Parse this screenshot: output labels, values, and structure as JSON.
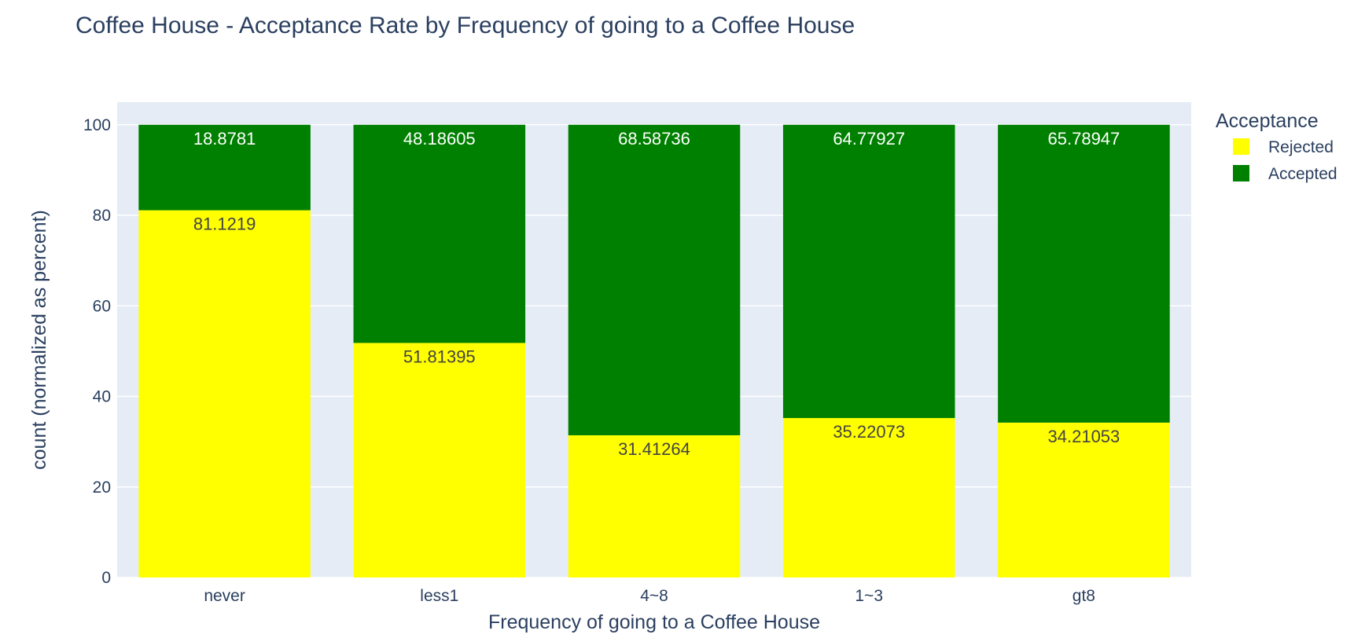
{
  "chart_data": {
    "type": "bar",
    "stacked": true,
    "title": "Coffee House - Acceptance Rate by Frequency of going to a Coffee House",
    "xlabel": "Frequency of going to a Coffee House",
    "ylabel": "count (normalized as percent)",
    "categories": [
      "never",
      "less1",
      "4~8",
      "1~3",
      "gt8"
    ],
    "ylim": [
      0,
      105
    ],
    "yticks": [
      0,
      20,
      40,
      60,
      80,
      100
    ],
    "grid": true,
    "legend": {
      "title": "Acceptance",
      "placement": "top-right"
    },
    "series": [
      {
        "name": "Rejected",
        "color": "#ffff00",
        "label_color": "#444444",
        "values": [
          81.1219,
          51.81395,
          31.41264,
          35.22073,
          34.21053
        ],
        "labels": [
          "81.1219",
          "51.81395",
          "31.41264",
          "35.22073",
          "34.21053"
        ]
      },
      {
        "name": "Accepted",
        "color": "#008000",
        "label_color": "#ffffff",
        "values": [
          18.8781,
          48.18605,
          68.58736,
          64.77927,
          65.78947
        ],
        "labels": [
          "18.8781",
          "48.18605",
          "68.58736",
          "64.77927",
          "65.78947"
        ]
      }
    ],
    "plot_background": "#e5ecf6"
  }
}
